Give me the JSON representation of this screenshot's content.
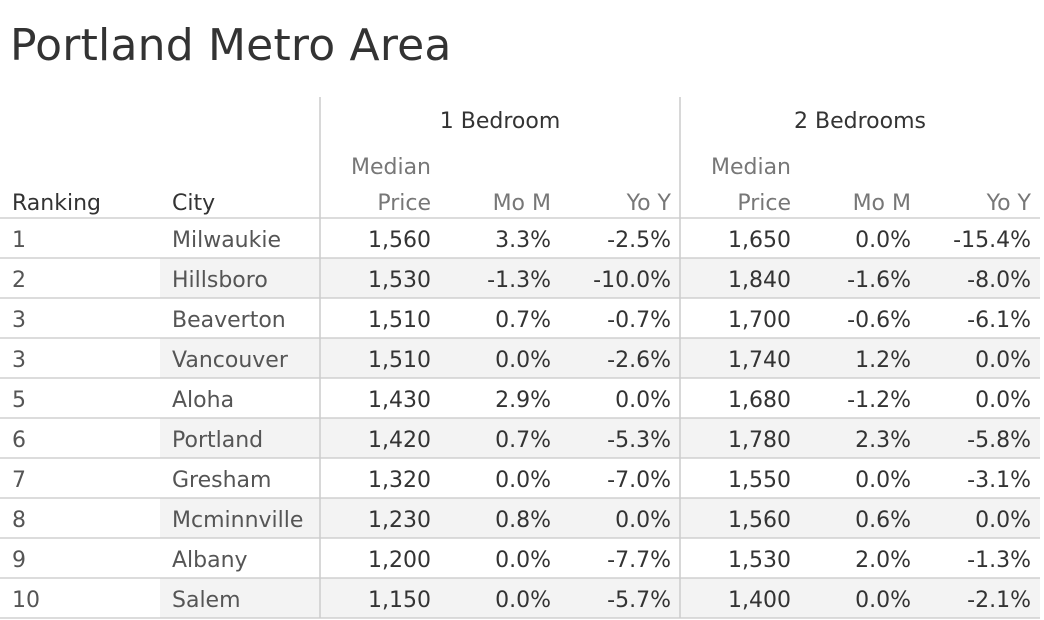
{
  "title": "Portland Metro Area",
  "chart_data": {
    "type": "table",
    "title": "Portland Metro Area",
    "column_groups": [
      {
        "label": "1 Bedroom"
      },
      {
        "label": "2 Bedrooms"
      }
    ],
    "columns": {
      "ranking": "Ranking",
      "city": "City",
      "median_top": "Median",
      "median_bottom": "Price",
      "mom": "Mo M",
      "yoy": "Yo Y"
    },
    "rows": [
      {
        "rank": "1",
        "city": "Milwaukie",
        "b1": {
          "price": "1,560",
          "mom": "3.3%",
          "yoy": "-2.5%"
        },
        "b2": {
          "price": "1,650",
          "mom": "0.0%",
          "yoy": "-15.4%"
        }
      },
      {
        "rank": "2",
        "city": "Hillsboro",
        "b1": {
          "price": "1,530",
          "mom": "-1.3%",
          "yoy": "-10.0%"
        },
        "b2": {
          "price": "1,840",
          "mom": "-1.6%",
          "yoy": "-8.0%"
        }
      },
      {
        "rank": "3",
        "city": "Beaverton",
        "b1": {
          "price": "1,510",
          "mom": "0.7%",
          "yoy": "-0.7%"
        },
        "b2": {
          "price": "1,700",
          "mom": "-0.6%",
          "yoy": "-6.1%"
        }
      },
      {
        "rank": "3",
        "city": "Vancouver",
        "b1": {
          "price": "1,510",
          "mom": "0.0%",
          "yoy": "-2.6%"
        },
        "b2": {
          "price": "1,740",
          "mom": "1.2%",
          "yoy": "0.0%"
        }
      },
      {
        "rank": "5",
        "city": "Aloha",
        "b1": {
          "price": "1,430",
          "mom": "2.9%",
          "yoy": "0.0%"
        },
        "b2": {
          "price": "1,680",
          "mom": "-1.2%",
          "yoy": "0.0%"
        }
      },
      {
        "rank": "6",
        "city": "Portland",
        "b1": {
          "price": "1,420",
          "mom": "0.7%",
          "yoy": "-5.3%"
        },
        "b2": {
          "price": "1,780",
          "mom": "2.3%",
          "yoy": "-5.8%"
        }
      },
      {
        "rank": "7",
        "city": "Gresham",
        "b1": {
          "price": "1,320",
          "mom": "0.0%",
          "yoy": "-7.0%"
        },
        "b2": {
          "price": "1,550",
          "mom": "0.0%",
          "yoy": "-3.1%"
        }
      },
      {
        "rank": "8",
        "city": "Mcminnville",
        "b1": {
          "price": "1,230",
          "mom": "0.8%",
          "yoy": "0.0%"
        },
        "b2": {
          "price": "1,560",
          "mom": "0.6%",
          "yoy": "0.0%"
        }
      },
      {
        "rank": "9",
        "city": "Albany",
        "b1": {
          "price": "1,200",
          "mom": "0.0%",
          "yoy": "-7.7%"
        },
        "b2": {
          "price": "1,530",
          "mom": "2.0%",
          "yoy": "-1.3%"
        }
      },
      {
        "rank": "10",
        "city": "Salem",
        "b1": {
          "price": "1,150",
          "mom": "0.0%",
          "yoy": "-5.7%"
        },
        "b2": {
          "price": "1,400",
          "mom": "0.0%",
          "yoy": "-2.1%"
        }
      }
    ],
    "colors": {
      "text_dark": "#333333",
      "text_body": "#555555",
      "stripe": "#f3f3f3",
      "rule": "#d0d0d0",
      "divider": "#cccccc"
    }
  }
}
